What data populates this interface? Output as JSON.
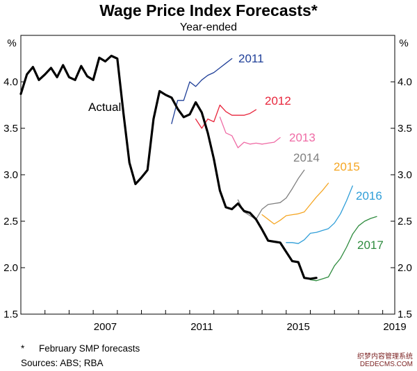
{
  "title": "Wage Price Index Forecasts*",
  "subtitle": "Year-ended",
  "footnote_marker": "*",
  "footnote": "February SMP forecasts",
  "sources": "Sources: ABS; RBA",
  "watermark_line1": "织梦内容管理系统",
  "watermark_line2": "DEDECMS.COM",
  "chart_data": {
    "type": "line",
    "unit_label": "%",
    "ylim": [
      1.5,
      4.5
    ],
    "yticks": [
      "1.5",
      "2.0",
      "2.5",
      "3.0",
      "3.5",
      "4.0"
    ],
    "xlim": [
      2004.0,
      2019.5
    ],
    "xticks": [
      {
        "label": "2007",
        "value": 2007.0
      },
      {
        "label": "2011",
        "value": 2011.0
      },
      {
        "label": "2015",
        "value": 2015.0
      },
      {
        "label": "2019",
        "value": 2019.0
      }
    ],
    "grid": false,
    "legend": "inline labels",
    "series": [
      {
        "name": "Actual",
        "color": "#000000",
        "width": 3.2,
        "x": [
          2004.0,
          2004.25,
          2004.5,
          2004.75,
          2005.0,
          2005.25,
          2005.5,
          2005.75,
          2006.0,
          2006.25,
          2006.5,
          2006.75,
          2007.0,
          2007.25,
          2007.5,
          2007.75,
          2008.0,
          2008.25,
          2008.5,
          2008.75,
          2009.0,
          2009.25,
          2009.5,
          2009.75,
          2010.0,
          2010.25,
          2010.5,
          2010.75,
          2011.0,
          2011.25,
          2011.5,
          2011.75,
          2012.0,
          2012.25,
          2012.5,
          2012.75,
          2013.0,
          2013.25,
          2013.5,
          2013.75,
          2014.0,
          2014.25,
          2014.5,
          2014.75,
          2015.0,
          2015.25,
          2015.5,
          2015.75,
          2016.0,
          2016.25
        ],
        "y": [
          3.87,
          4.08,
          4.16,
          4.02,
          4.08,
          4.15,
          4.05,
          4.18,
          4.05,
          4.02,
          4.17,
          4.06,
          4.02,
          4.26,
          4.22,
          4.28,
          4.25,
          3.67,
          3.13,
          2.9,
          2.97,
          3.05,
          3.6,
          3.9,
          3.86,
          3.83,
          3.71,
          3.62,
          3.65,
          3.78,
          3.67,
          3.45,
          3.17,
          2.83,
          2.65,
          2.63,
          2.69,
          2.61,
          2.59,
          2.52,
          2.41,
          2.29,
          2.28,
          2.27,
          2.17,
          2.07,
          2.06,
          1.89,
          1.88,
          1.89
        ]
      },
      {
        "name": "2011",
        "color": "#1f3f98",
        "width": 1.3,
        "x": [
          2010.25,
          2010.5,
          2010.75,
          2011.0,
          2011.25,
          2011.5,
          2011.75,
          2012.0,
          2012.25,
          2012.5,
          2012.75
        ],
        "y": [
          3.55,
          3.8,
          3.8,
          4.0,
          3.95,
          4.02,
          4.07,
          4.1,
          4.15,
          4.2,
          4.25
        ]
      },
      {
        "name": "2012",
        "color": "#e8263c",
        "width": 1.3,
        "x": [
          2011.25,
          2011.5,
          2011.75,
          2012.0,
          2012.25,
          2012.5,
          2012.75,
          2013.0,
          2013.25,
          2013.5,
          2013.75
        ],
        "y": [
          3.6,
          3.5,
          3.6,
          3.57,
          3.75,
          3.68,
          3.64,
          3.64,
          3.64,
          3.66,
          3.7
        ]
      },
      {
        "name": "2013",
        "color": "#ef6ba5",
        "width": 1.3,
        "x": [
          2012.25,
          2012.5,
          2012.75,
          2013.0,
          2013.25,
          2013.5,
          2013.75,
          2014.0,
          2014.25,
          2014.5,
          2014.75
        ],
        "y": [
          3.62,
          3.45,
          3.42,
          3.29,
          3.35,
          3.33,
          3.34,
          3.33,
          3.34,
          3.35,
          3.4
        ]
      },
      {
        "name": "2014",
        "color": "#7f7f7f",
        "width": 1.3,
        "x": [
          2013.0,
          2013.25,
          2013.5,
          2013.75,
          2014.0,
          2014.25,
          2014.5,
          2014.75,
          2015.0,
          2015.25,
          2015.5,
          2015.75
        ],
        "y": [
          2.73,
          2.6,
          2.56,
          2.52,
          2.63,
          2.68,
          2.69,
          2.7,
          2.75,
          2.85,
          2.96,
          3.05
        ]
      },
      {
        "name": "2015",
        "color": "#f5a623",
        "width": 1.3,
        "x": [
          2014.0,
          2014.25,
          2014.5,
          2014.75,
          2015.0,
          2015.25,
          2015.5,
          2015.75,
          2016.0,
          2016.25,
          2016.5,
          2016.75
        ],
        "y": [
          2.57,
          2.52,
          2.47,
          2.51,
          2.56,
          2.57,
          2.58,
          2.6,
          2.68,
          2.76,
          2.83,
          2.91
        ]
      },
      {
        "name": "2016",
        "color": "#2f9ed8",
        "width": 1.3,
        "x": [
          2015.0,
          2015.25,
          2015.5,
          2015.75,
          2016.0,
          2016.25,
          2016.5,
          2016.75,
          2017.0,
          2017.25,
          2017.5,
          2017.75
        ],
        "y": [
          2.27,
          2.27,
          2.26,
          2.3,
          2.37,
          2.38,
          2.4,
          2.42,
          2.48,
          2.58,
          2.72,
          2.88
        ]
      },
      {
        "name": "2017",
        "color": "#2e8b3e",
        "width": 1.3,
        "x": [
          2016.0,
          2016.25,
          2016.5,
          2016.75,
          2017.0,
          2017.25,
          2017.5,
          2017.75,
          2018.0,
          2018.25,
          2018.5,
          2018.75
        ],
        "y": [
          1.87,
          1.86,
          1.88,
          1.9,
          2.02,
          2.1,
          2.22,
          2.36,
          2.45,
          2.5,
          2.53,
          2.55
        ]
      }
    ]
  }
}
